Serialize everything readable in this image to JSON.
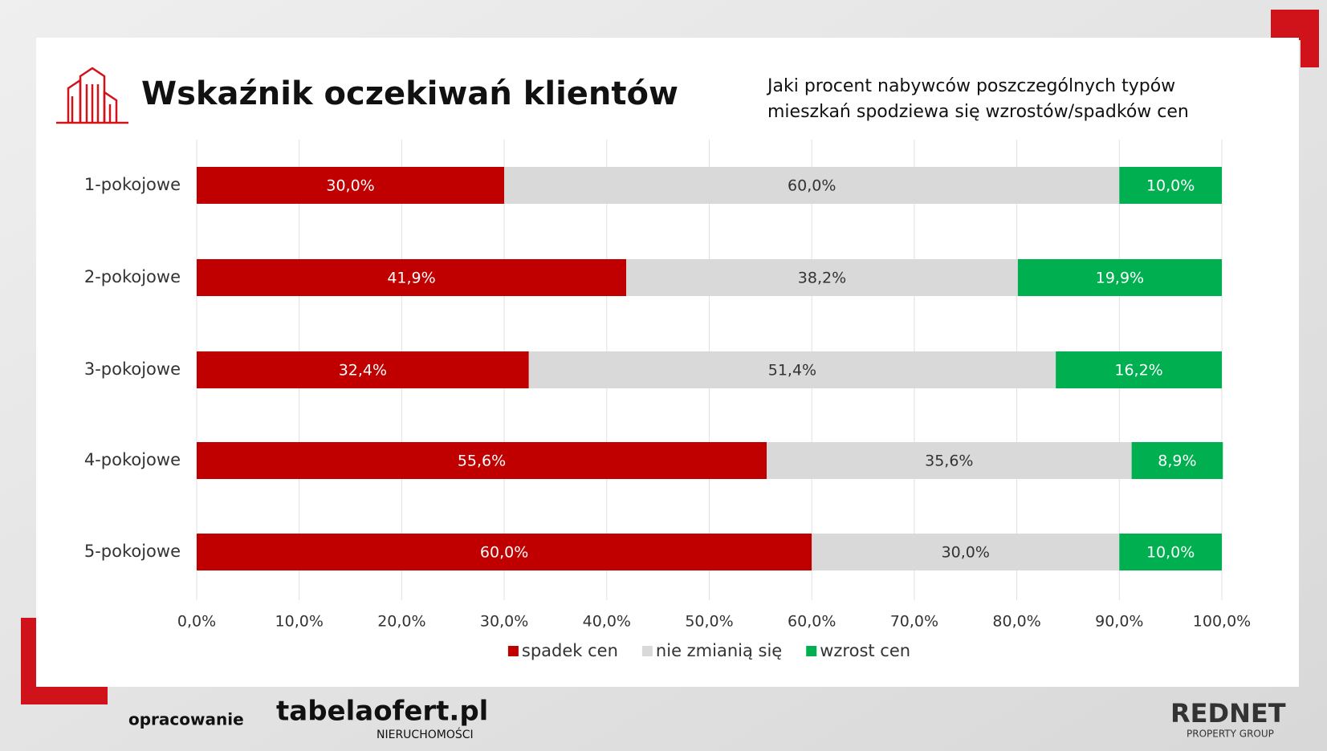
{
  "chart_data": {
    "type": "stacked-bar-horizontal",
    "title": "Wskaźnik oczekiwań klientów",
    "subtitle": "Jaki procent nabywców poszczególnych typów mieszkań spodziewa się wzrostów/spadków cen",
    "categories": [
      "1-pokojowe",
      "2-pokojowe",
      "3-pokojowe",
      "4-pokojowe",
      "5-pokojowe"
    ],
    "series": [
      {
        "name": "spadek cen",
        "color": "#c00000",
        "values": [
          30.0,
          41.9,
          32.4,
          55.6,
          60.0
        ],
        "value_labels": [
          "30,0%",
          "41,9%",
          "32,4%",
          "55,6%",
          "60,0%"
        ]
      },
      {
        "name": "nie zmianią się",
        "color": "#d9d9d9",
        "values": [
          60.0,
          38.2,
          51.4,
          35.6,
          30.0
        ],
        "value_labels": [
          "60,0%",
          "38,2%",
          "51,4%",
          "35,6%",
          "30,0%"
        ]
      },
      {
        "name": "wzrost cen",
        "color": "#00b050",
        "values": [
          10.0,
          19.9,
          16.2,
          8.9,
          10.0
        ],
        "value_labels": [
          "10,0%",
          "19,9%",
          "16,2%",
          "8,9%",
          "10,0%"
        ]
      }
    ],
    "xlim": [
      0,
      100
    ],
    "xticks": [
      {
        "value": 0,
        "label": "0,0%"
      },
      {
        "value": 10,
        "label": "10,0%"
      },
      {
        "value": 20,
        "label": "20,0%"
      },
      {
        "value": 30,
        "label": "30,0%"
      },
      {
        "value": 40,
        "label": "40,0%"
      },
      {
        "value": 50,
        "label": "50,0%"
      },
      {
        "value": 60,
        "label": "60,0%"
      },
      {
        "value": 70,
        "label": "70,0%"
      },
      {
        "value": 80,
        "label": "80,0%"
      },
      {
        "value": 90,
        "label": "90,0%"
      },
      {
        "value": 100,
        "label": "100,0%"
      }
    ],
    "grid": true,
    "legend": "bottom"
  },
  "footer": {
    "credit": "opracowanie",
    "brand": "tabelaofert.pl",
    "brand_sub": "NIERUCHOMOŚCI",
    "logo": "REDNET",
    "logo_sub": "PROPERTY GROUP"
  }
}
